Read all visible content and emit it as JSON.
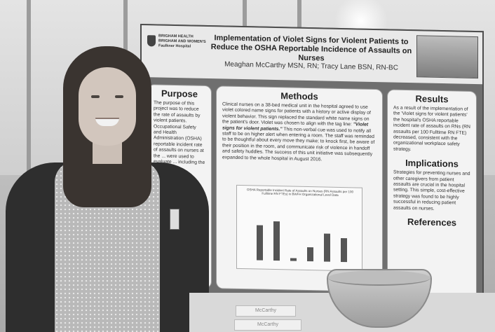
{
  "poster": {
    "title": "Implementation of Violet Signs for Violent Patients to Reduce the OSHA Reportable Incidence of Assaults on Nurses",
    "authors": "Meaghan McCarthy MSN, RN; Tracy Lane BSN, RN-BC",
    "logo_text": "BRIGHAM HEALTH\nBRIGHAM AND WOMEN'S\nFaulkner Hospital",
    "sections": {
      "purpose": {
        "heading": "Purpose",
        "body": "The purpose of this project was to reduce the rate of assaults by violent patients. Occupational Safety and Health Administration (OSHA) reportable incident rate of assaults on nurses at the ... were used to evaluate ... including the \"Violet"
      },
      "methods": {
        "heading": "Methods",
        "body_lead": "Clinical nurses on a 38-bed medical unit in the hospital agreed to use violet colored name signs for patients with a history or active display of violent behavior. This sign replaced the standard white name signs on the patient's door. Violet was chosen to align with the tag line: ",
        "tagline": "\"Violet signs for violent patients.\"",
        "body_rest": " This non-verbal cue was used to notify all staff to be on higher alert when entering a room. The staff was reminded to be thoughtful about every move they make; to knock first, be aware of their position in the room, and communicate risk of violence in handoff and safety huddles. The success of this unit initiative was subsequently expanded to the whole hospital in August 2016."
      },
      "results": {
        "heading": "Results",
        "body": "As a result of the implementation of the 'Violet signs for violent patients' the hospital's OSHA reportable incident rate of assaults on RNs (RN assaults per 100 Fulltime RN FTE) decreased, consistent with the organizational workplace safety strategy."
      },
      "implications": {
        "heading": "Implications",
        "body": "Strategies for preventing nurses and other caregivers from patient assaults are crucial in the hospital setting. This simple, cost-effective strategy was found to be highly successful in reducing patient assaults on nurses."
      },
      "references": {
        "heading": "References"
      }
    },
    "mini_chart": {
      "title": "OSHA Reportable Incident Rate of Assaults on Nurses (RN Assaults per 100 Fulltime RN FTEs) in BWFH Organizational Level Data",
      "values": [
        0.62,
        0.7,
        0.05,
        0.25,
        0.5,
        0.42
      ]
    }
  },
  "name_cards": [
    "McCarthy",
    "McCarthy"
  ]
}
